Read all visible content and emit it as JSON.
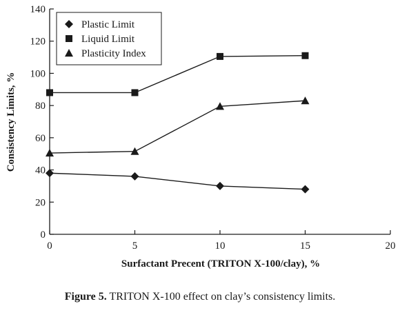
{
  "caption": {
    "label": "Figure 5.",
    "text": " TRITON X-100 effect on clay’s consistency limits."
  },
  "chart_data": {
    "type": "line",
    "xlabel": "Surfactant Precent (TRITON X-100/clay), %",
    "ylabel": "Consistency Limits, %",
    "xlim": [
      0,
      20
    ],
    "ylim": [
      0,
      140
    ],
    "xticks": [
      0,
      5,
      10,
      15,
      20
    ],
    "yticks": [
      0,
      20,
      40,
      60,
      80,
      100,
      120,
      140
    ],
    "grid": false,
    "legend_position": "top-left",
    "series": [
      {
        "name": "Plastic Limit",
        "marker": "diamond",
        "x": [
          0,
          5,
          10,
          15
        ],
        "y": [
          38,
          36,
          30,
          28
        ]
      },
      {
        "name": "Liquid Limit",
        "marker": "square",
        "x": [
          0,
          5,
          10,
          15
        ],
        "y": [
          88,
          88,
          110.5,
          111
        ]
      },
      {
        "name": "Plasticity Index",
        "marker": "triangle",
        "x": [
          0,
          5,
          10,
          15
        ],
        "y": [
          50.5,
          51.5,
          79.5,
          83
        ]
      }
    ],
    "line_color": "#1a1a1a"
  }
}
